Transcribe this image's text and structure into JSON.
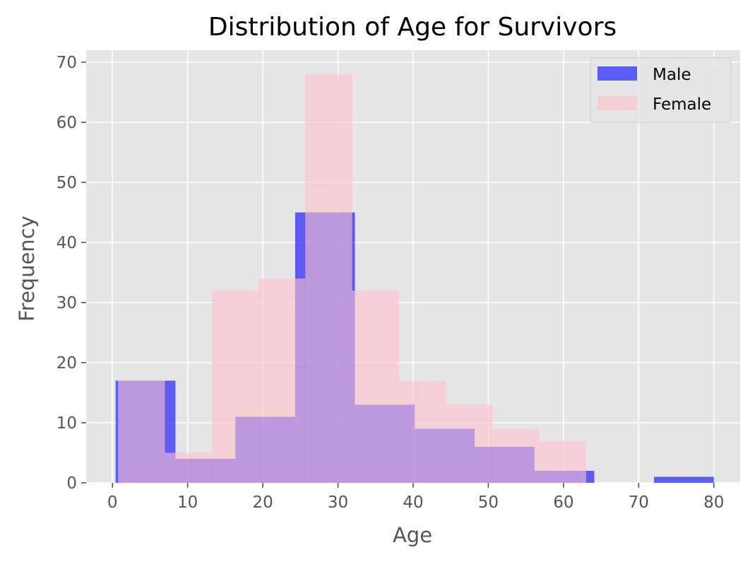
{
  "chart_data": {
    "type": "bar",
    "title": "Distribution of Age for Survivors",
    "xlabel": "Age",
    "ylabel": "Frequency",
    "xlim": [
      -3.5,
      83.5
    ],
    "ylim": [
      0,
      72
    ],
    "xticks": [
      0,
      10,
      20,
      30,
      40,
      50,
      60,
      70,
      80
    ],
    "yticks": [
      0,
      10,
      20,
      30,
      40,
      50,
      60,
      70
    ],
    "grid": true,
    "legend_position": "top-right",
    "series": [
      {
        "name": "Male",
        "color": "#0000ff",
        "alpha": 0.6,
        "bins": [
          {
            "x0": 0.42,
            "x1": 8.38,
            "value": 17
          },
          {
            "x0": 8.38,
            "x1": 16.34,
            "value": 4
          },
          {
            "x0": 16.34,
            "x1": 24.3,
            "value": 11
          },
          {
            "x0": 24.3,
            "x1": 32.25,
            "value": 45
          },
          {
            "x0": 32.25,
            "x1": 40.21,
            "value": 13
          },
          {
            "x0": 40.21,
            "x1": 48.17,
            "value": 9
          },
          {
            "x0": 48.17,
            "x1": 56.13,
            "value": 6
          },
          {
            "x0": 56.13,
            "x1": 64.09,
            "value": 2
          },
          {
            "x0": 64.09,
            "x1": 72.04,
            "value": 0
          },
          {
            "x0": 72.04,
            "x1": 80.0,
            "value": 1
          }
        ]
      },
      {
        "name": "Female",
        "color": "#ffc0cb",
        "alpha": 0.6,
        "bins": [
          {
            "x0": 0.75,
            "x1": 6.98,
            "value": 17
          },
          {
            "x0": 6.98,
            "x1": 13.2,
            "value": 5
          },
          {
            "x0": 13.2,
            "x1": 19.43,
            "value": 32
          },
          {
            "x0": 19.43,
            "x1": 25.65,
            "value": 34
          },
          {
            "x0": 25.65,
            "x1": 31.88,
            "value": 68
          },
          {
            "x0": 31.88,
            "x1": 38.1,
            "value": 32
          },
          {
            "x0": 38.1,
            "x1": 44.33,
            "value": 17
          },
          {
            "x0": 44.33,
            "x1": 50.55,
            "value": 13
          },
          {
            "x0": 50.55,
            "x1": 56.78,
            "value": 9
          },
          {
            "x0": 56.78,
            "x1": 63.0,
            "value": 7
          }
        ]
      }
    ]
  }
}
